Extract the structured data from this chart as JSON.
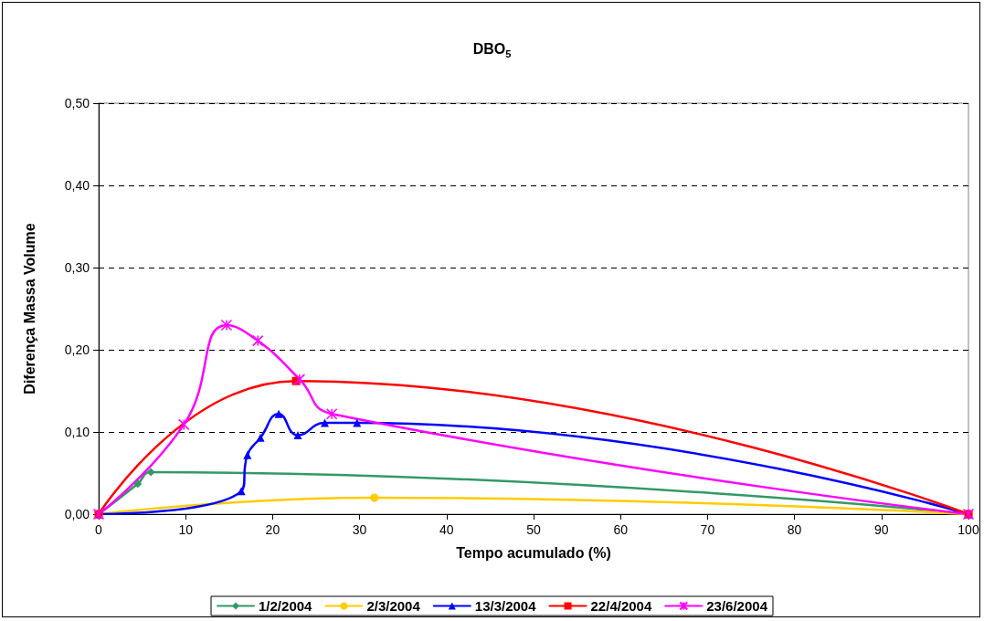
{
  "chart_data": {
    "type": "line",
    "title": "DBO$_{5}$",
    "xlabel": "Tempo acumulado (%)",
    "ylabel": "Diferença Massa Volume",
    "xlim": [
      0,
      100
    ],
    "xticks": [
      0,
      10,
      20,
      30,
      40,
      50,
      60,
      70,
      80,
      90,
      100
    ],
    "ylim": [
      0,
      0.5
    ],
    "yticks": [
      {
        "value": 0,
        "label": "0,00"
      },
      {
        "value": 0.1,
        "label": "0,10"
      },
      {
        "value": 0.2,
        "label": "0,20"
      },
      {
        "value": 0.3,
        "label": "0,30"
      },
      {
        "value": 0.4,
        "label": "0,40"
      },
      {
        "value": 0.5,
        "label": "0,50"
      }
    ],
    "grid": "y",
    "legend": "bottom",
    "line_style": "solid",
    "series": [
      {
        "name": "1/2/2004",
        "color": "#339966",
        "marker": "diamond",
        "x": [
          0,
          4.5,
          6.0,
          100
        ],
        "values": [
          0,
          0.037,
          0.051,
          0
        ]
      },
      {
        "name": "2/3/2004",
        "color": "#ffcc00",
        "marker": "circle",
        "x": [
          0,
          31.7,
          100
        ],
        "values": [
          0,
          0.02,
          0
        ]
      },
      {
        "name": "13/3/2004",
        "color": "#0000ff",
        "marker": "triangle",
        "x": [
          0,
          16.4,
          17.1,
          18.6,
          20.7,
          22.9,
          26.0,
          29.7,
          100
        ],
        "values": [
          0,
          0.028,
          0.072,
          0.093,
          0.122,
          0.096,
          0.111,
          0.111,
          0
        ]
      },
      {
        "name": "22/4/2004",
        "color": "#ff0000",
        "marker": "square",
        "x": [
          0,
          22.7,
          100
        ],
        "values": [
          0,
          0.162,
          0
        ]
      },
      {
        "name": "23/6/2004",
        "color": "#ff00ff",
        "marker": "cross",
        "x": [
          0,
          9.8,
          14.7,
          18.3,
          23.1,
          26.8,
          100
        ],
        "values": [
          0,
          0.109,
          0.23,
          0.211,
          0.164,
          0.122,
          0
        ]
      }
    ]
  }
}
